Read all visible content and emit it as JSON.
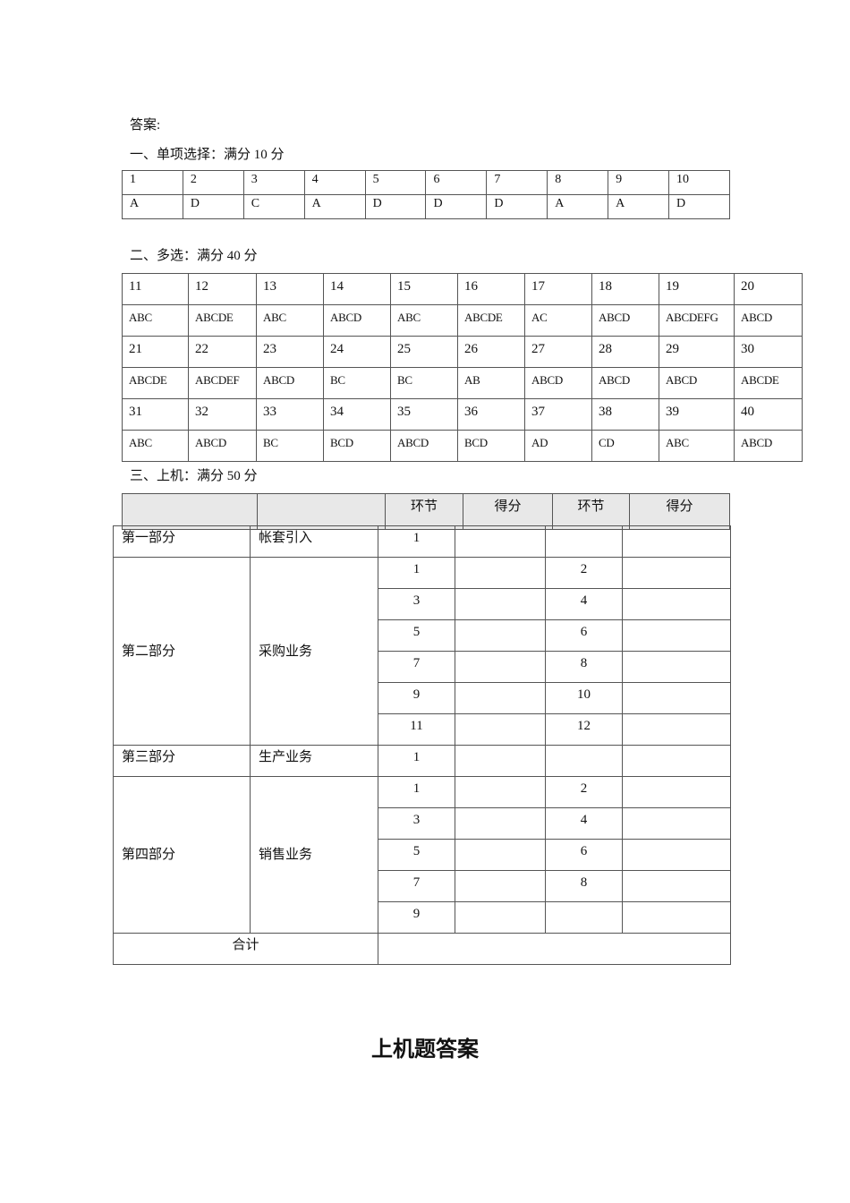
{
  "heading": "答案:",
  "section1": {
    "title": "一、单项选择：满分 10 分",
    "numbers": [
      "1",
      "2",
      "3",
      "4",
      "5",
      "6",
      "7",
      "8",
      "9",
      "10"
    ],
    "answers": [
      "A",
      "D",
      "C",
      "A",
      "D",
      "D",
      "D",
      "A",
      "A",
      "D"
    ]
  },
  "section2": {
    "title": "二、多选：满分 40 分",
    "rows": [
      [
        "11",
        "12",
        "13",
        "14",
        "15",
        "16",
        "17",
        "18",
        "19",
        "20"
      ],
      [
        "ABC",
        "ABCDE",
        "ABC",
        "ABCD",
        "ABC",
        "ABCDE",
        "AC",
        "ABCD",
        "ABCDEFG",
        "ABCD"
      ],
      [
        "21",
        "22",
        "23",
        "24",
        "25",
        "26",
        "27",
        "28",
        "29",
        "30"
      ],
      [
        "ABCDE",
        "ABCDEF",
        "ABCD",
        "BC",
        "BC",
        "AB",
        "ABCD",
        "ABCD",
        "ABCD",
        "ABCDE"
      ],
      [
        "31",
        "32",
        "33",
        "34",
        "35",
        "36",
        "37",
        "38",
        "39",
        "40"
      ],
      [
        "ABC",
        "ABCD",
        "BC",
        "BCD",
        "ABCD",
        "BCD",
        "AD",
        "CD",
        "ABC",
        "ABCD"
      ]
    ]
  },
  "section3": {
    "title": "三、上机：满分 50 分",
    "header": [
      "",
      "",
      "环节",
      "得分",
      "环节",
      "得分"
    ],
    "parts": [
      {
        "part": "第一部分",
        "name": "帐套引入",
        "steps": [
          [
            "1",
            ""
          ]
        ]
      },
      {
        "part": "第二部分",
        "name": "采购业务",
        "steps": [
          [
            "1",
            "2"
          ],
          [
            "3",
            "4"
          ],
          [
            "5",
            "6"
          ],
          [
            "7",
            "8"
          ],
          [
            "9",
            "10"
          ],
          [
            "11",
            "12"
          ]
        ]
      },
      {
        "part": "第三部分",
        "name": "生产业务",
        "steps": [
          [
            "1",
            ""
          ]
        ]
      },
      {
        "part": "第四部分",
        "name": "销售业务",
        "steps": [
          [
            "1",
            "2"
          ],
          [
            "3",
            "4"
          ],
          [
            "5",
            "6"
          ],
          [
            "7",
            "8"
          ],
          [
            "9",
            ""
          ]
        ]
      }
    ],
    "total_label": "合计"
  },
  "footer_title": "上机题答案"
}
